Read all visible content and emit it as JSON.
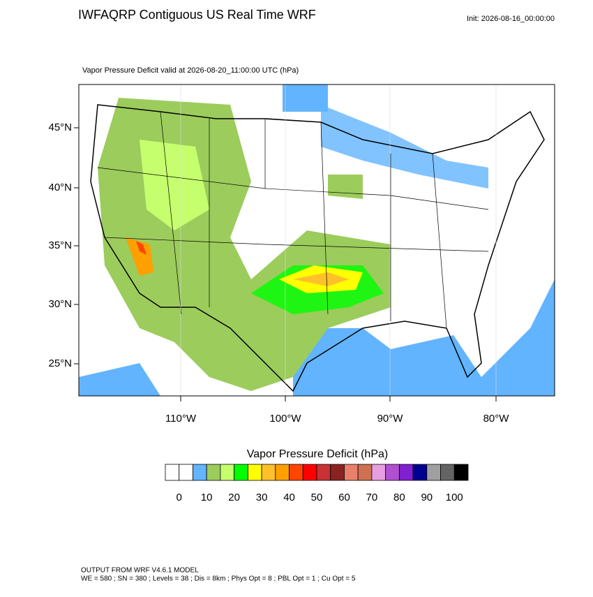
{
  "header": {
    "title": "IWFAQRP Contiguous US Real Time WRF",
    "init": "Init: 2026-08-16_00:00:00"
  },
  "map": {
    "subtitle": "Vapor Pressure Deficit valid at 2026-08-20_11:00:00 UTC   (hPa)",
    "lat_labels": [
      "45°N",
      "40°N",
      "35°N",
      "30°N",
      "25°N"
    ],
    "lon_labels": [
      "110°W",
      "100°W",
      "90°W",
      "80°W"
    ]
  },
  "colorbar": {
    "title": "Vapor Pressure Deficit  (hPa)",
    "colors": [
      "#ffffff",
      "#ffffff",
      "#62b4ff",
      "#9ccc5c",
      "#c6ff6e",
      "#00ff00",
      "#ffff00",
      "#ffc02a",
      "#ffa000",
      "#ff4500",
      "#ff0000",
      "#c83232",
      "#8b2222",
      "#e8806c",
      "#d07050",
      "#e6a0e0",
      "#b050d0",
      "#8020d0",
      "#000090",
      "#a0a0a0",
      "#646464",
      "#000000"
    ],
    "labels": [
      "0",
      "10",
      "20",
      "30",
      "40",
      "50",
      "60",
      "70",
      "80",
      "90",
      "100"
    ]
  },
  "footer": {
    "lines": [
      "OUTPUT FROM WRF V4.6.1 MODEL",
      "WE = 580 ; SN = 380 ; Levels = 38 ; Dis = 8km ; Phys Opt = 8 ; PBL Opt = 1 ; Cu Opt = 5"
    ]
  }
}
